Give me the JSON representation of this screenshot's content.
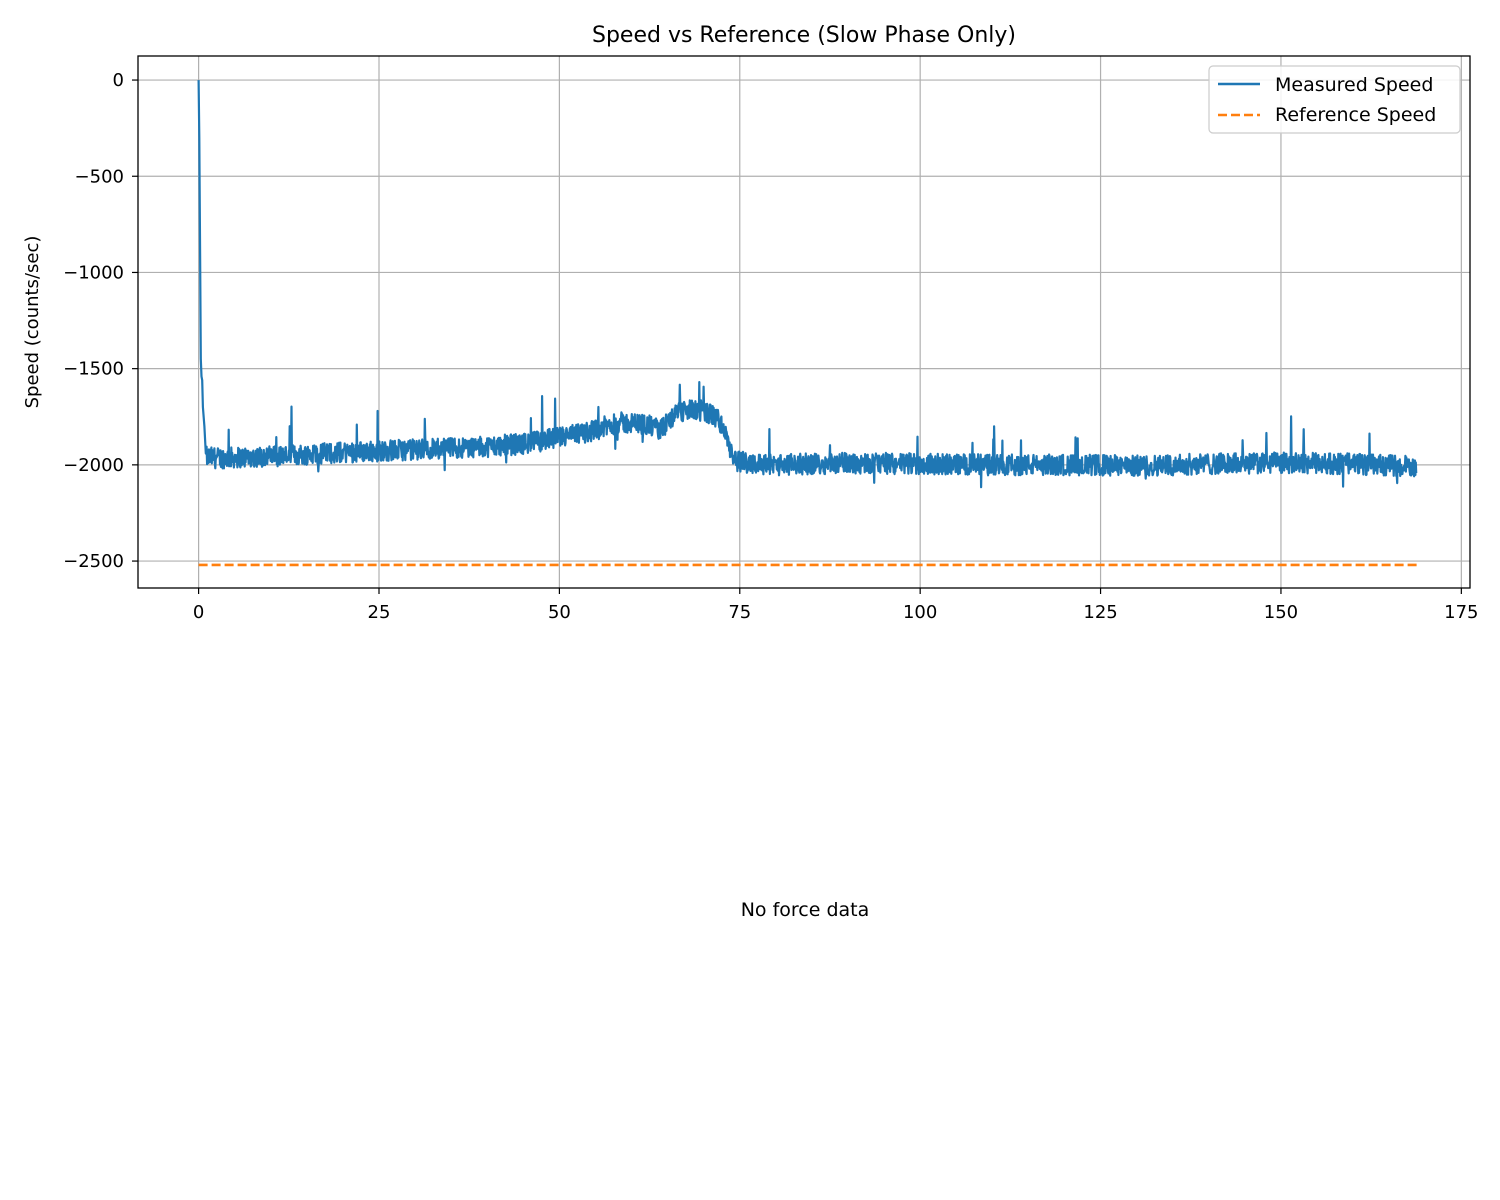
{
  "chart_data": {
    "type": "line",
    "title": "Speed vs Reference (Slow Phase Only)",
    "xlabel": "",
    "ylabel": "Speed (counts/sec)",
    "xlim": [
      -8.4,
      176.2
    ],
    "ylim": [
      -2640,
      125
    ],
    "xticks": [
      0,
      25,
      50,
      75,
      100,
      125,
      150,
      175
    ],
    "yticks": [
      0,
      -500,
      -1000,
      -1500,
      -2000,
      -2500
    ],
    "ytick_labels": [
      "0",
      "−500",
      "−1000",
      "−1500",
      "−2000",
      "−2500"
    ],
    "grid": true,
    "legend_position": "top-right",
    "series": [
      {
        "name": "Measured Speed",
        "color": "#1f77b4",
        "style": "solid",
        "x_range": [
          0,
          168.8
        ],
        "keypoints": [
          [
            0.0,
            0
          ],
          [
            0.15,
            -800
          ],
          [
            0.3,
            -1500
          ],
          [
            0.45,
            -1560
          ],
          [
            0.8,
            -1800
          ],
          [
            1.0,
            -1960
          ],
          [
            3,
            -1965
          ],
          [
            10,
            -1955
          ],
          [
            20,
            -1935
          ],
          [
            30,
            -1920
          ],
          [
            40,
            -1905
          ],
          [
            45,
            -1890
          ],
          [
            50,
            -1860
          ],
          [
            55,
            -1820
          ],
          [
            58,
            -1780
          ],
          [
            62,
            -1790
          ],
          [
            64,
            -1820
          ],
          [
            66,
            -1740
          ],
          [
            68,
            -1715
          ],
          [
            70,
            -1720
          ],
          [
            72,
            -1760
          ],
          [
            73.5,
            -1880
          ],
          [
            74,
            -1980
          ],
          [
            80,
            -2000
          ],
          [
            90,
            -1990
          ],
          [
            100,
            -1995
          ],
          [
            110,
            -2000
          ],
          [
            120,
            -2000
          ],
          [
            130,
            -2005
          ],
          [
            140,
            -1995
          ],
          [
            150,
            -1990
          ],
          [
            160,
            -1995
          ],
          [
            168.8,
            -2010
          ]
        ],
        "noise_band": 55
      },
      {
        "name": "Reference Speed",
        "color": "#ff7f0e",
        "style": "dashed",
        "x": [
          0,
          168.8
        ],
        "y": [
          -2520,
          -2520
        ]
      }
    ]
  },
  "lower_panel": {
    "message": "No force data"
  }
}
